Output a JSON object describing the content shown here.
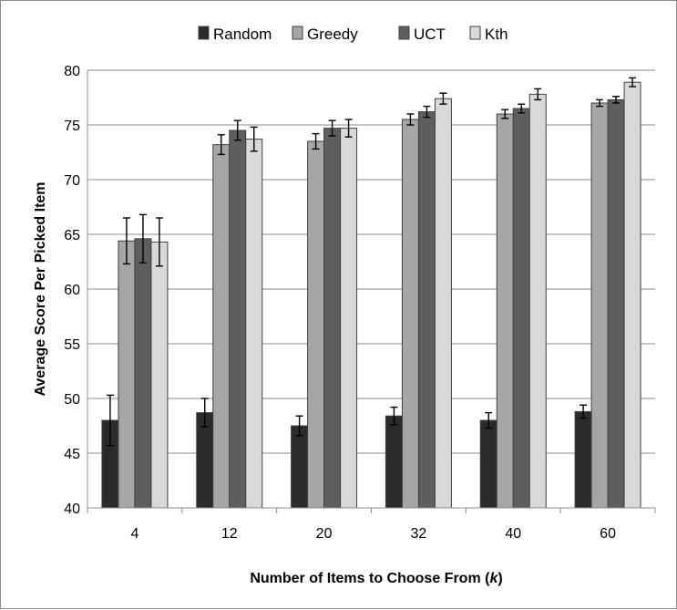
{
  "chart_data": {
    "type": "bar",
    "xlabel": "Number of Items to Choose From (",
    "xlabel_var": "k",
    "xlabel_end": ")",
    "ylabel": "Average Score Per Picked Item",
    "ylim": [
      40,
      80
    ],
    "yticks": [
      40,
      45,
      50,
      55,
      60,
      65,
      70,
      75,
      80
    ],
    "categories": [
      "4",
      "12",
      "20",
      "32",
      "40",
      "60"
    ],
    "grid": "horizontal",
    "legend_position": "top",
    "series": [
      {
        "name": "Random",
        "color": "#2b2b2b",
        "values": [
          48.0,
          48.7,
          47.5,
          48.4,
          48.0,
          48.8
        ],
        "errors": [
          2.3,
          1.3,
          0.9,
          0.8,
          0.7,
          0.6
        ]
      },
      {
        "name": "Greedy",
        "color": "#a6a6a6",
        "values": [
          64.4,
          73.2,
          73.5,
          75.5,
          76.0,
          77.0
        ],
        "errors": [
          2.1,
          0.9,
          0.7,
          0.5,
          0.4,
          0.3
        ]
      },
      {
        "name": "UCT",
        "color": "#5e5e5e",
        "values": [
          64.6,
          74.5,
          74.7,
          76.2,
          76.5,
          77.3
        ],
        "errors": [
          2.2,
          0.9,
          0.7,
          0.5,
          0.4,
          0.3
        ]
      },
      {
        "name": "Kth",
        "color": "#d9d9d9",
        "values": [
          64.3,
          73.7,
          74.7,
          77.4,
          77.8,
          78.9
        ],
        "errors": [
          2.2,
          1.1,
          0.8,
          0.5,
          0.5,
          0.4
        ]
      }
    ]
  }
}
